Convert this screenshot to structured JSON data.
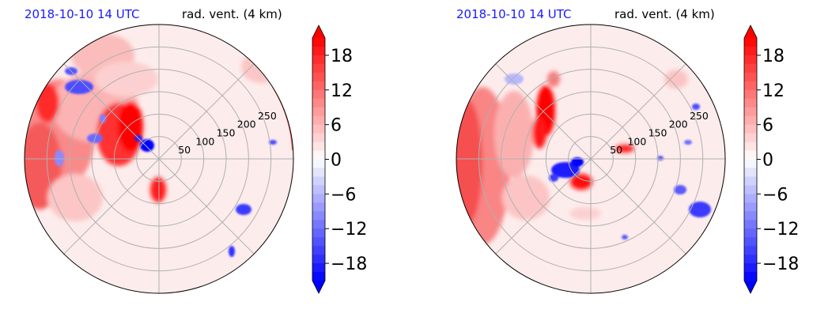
{
  "chart_data": [
    {
      "type": "polar_contour",
      "title_left": "2018-10-10 14 UTC",
      "title_right": "rad. vent. (4 km)",
      "radial_ticks": [
        50,
        100,
        150,
        200,
        250
      ],
      "rmax": 300,
      "grid": true,
      "colorbar": {
        "ticks": [
          "18",
          "12",
          "6",
          "0",
          "−6",
          "−12",
          "−18"
        ],
        "range": [
          -21,
          21
        ],
        "extend": "both"
      },
      "colors": {
        "positive": "#ff0000",
        "negative": "#0000ff",
        "left_title": "#1a1aff"
      }
    },
    {
      "type": "polar_contour",
      "title_left": "2018-10-10 14 UTC",
      "title_right": "rad. vent. (4 km)",
      "radial_ticks": [
        50,
        100,
        150,
        200,
        250
      ],
      "rmax": 300,
      "grid": true,
      "colorbar": {
        "ticks": [
          "18",
          "12",
          "6",
          "0",
          "−6",
          "−12",
          "−18"
        ],
        "range": [
          -21,
          21
        ],
        "extend": "both"
      },
      "colors": {
        "positive": "#ff0000",
        "negative": "#0000ff",
        "left_title": "#1a1aff"
      }
    }
  ]
}
